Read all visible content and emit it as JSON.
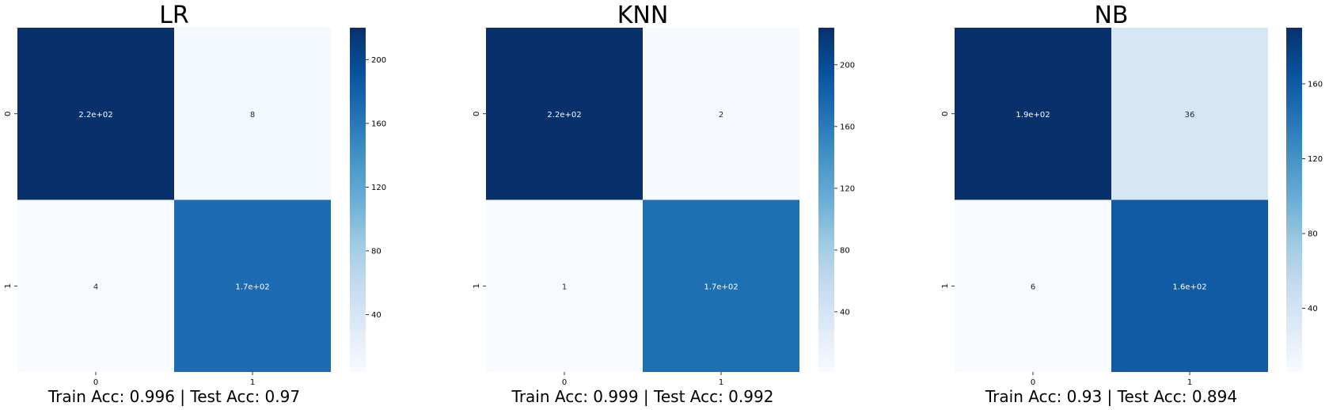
{
  "chart_data": [
    {
      "type": "heatmap",
      "title": "LR",
      "xlabel": "Train Acc: 0.996  |  Test Acc: 0.97",
      "ylabel": "",
      "x_categories": [
        "0",
        "1"
      ],
      "y_categories": [
        "0",
        "1"
      ],
      "values": [
        [
          220,
          8
        ],
        [
          4,
          170
        ]
      ],
      "annotations": [
        [
          "2.2e+02",
          "8"
        ],
        [
          "4",
          "1.7e+02"
        ]
      ],
      "colormap": "Blues",
      "color_range": [
        4,
        220
      ],
      "colorbar_ticks": [
        40,
        80,
        120,
        160,
        200
      ],
      "colorbar_tick_labels": [
        "40",
        "80",
        "120",
        "160",
        "200"
      ]
    },
    {
      "type": "heatmap",
      "title": "KNN",
      "xlabel": "Train Acc: 0.999  |  Test Acc: 0.992",
      "ylabel": "",
      "x_categories": [
        "0",
        "1"
      ],
      "y_categories": [
        "0",
        "1"
      ],
      "values": [
        [
          224,
          2
        ],
        [
          1,
          170
        ]
      ],
      "annotations": [
        [
          "2.2e+02",
          "2"
        ],
        [
          "1",
          "1.7e+02"
        ]
      ],
      "colormap": "Blues",
      "color_range": [
        1,
        224
      ],
      "colorbar_ticks": [
        40,
        80,
        120,
        160,
        200
      ],
      "colorbar_tick_labels": [
        "40",
        "80",
        "120",
        "160",
        "200"
      ]
    },
    {
      "type": "heatmap",
      "title": "NB",
      "xlabel": "Train Acc: 0.93  |  Test Acc: 0.894",
      "ylabel": "",
      "x_categories": [
        "0",
        "1"
      ],
      "y_categories": [
        "0",
        "1"
      ],
      "values": [
        [
          190,
          36
        ],
        [
          6,
          160
        ]
      ],
      "annotations": [
        [
          "1.9e+02",
          "36"
        ],
        [
          "6",
          "1.6e+02"
        ]
      ],
      "colormap": "Blues",
      "color_range": [
        6,
        190
      ],
      "colorbar_ticks": [
        40,
        80,
        120,
        160
      ],
      "colorbar_tick_labels": [
        "40",
        "80",
        "120",
        "160"
      ]
    }
  ]
}
